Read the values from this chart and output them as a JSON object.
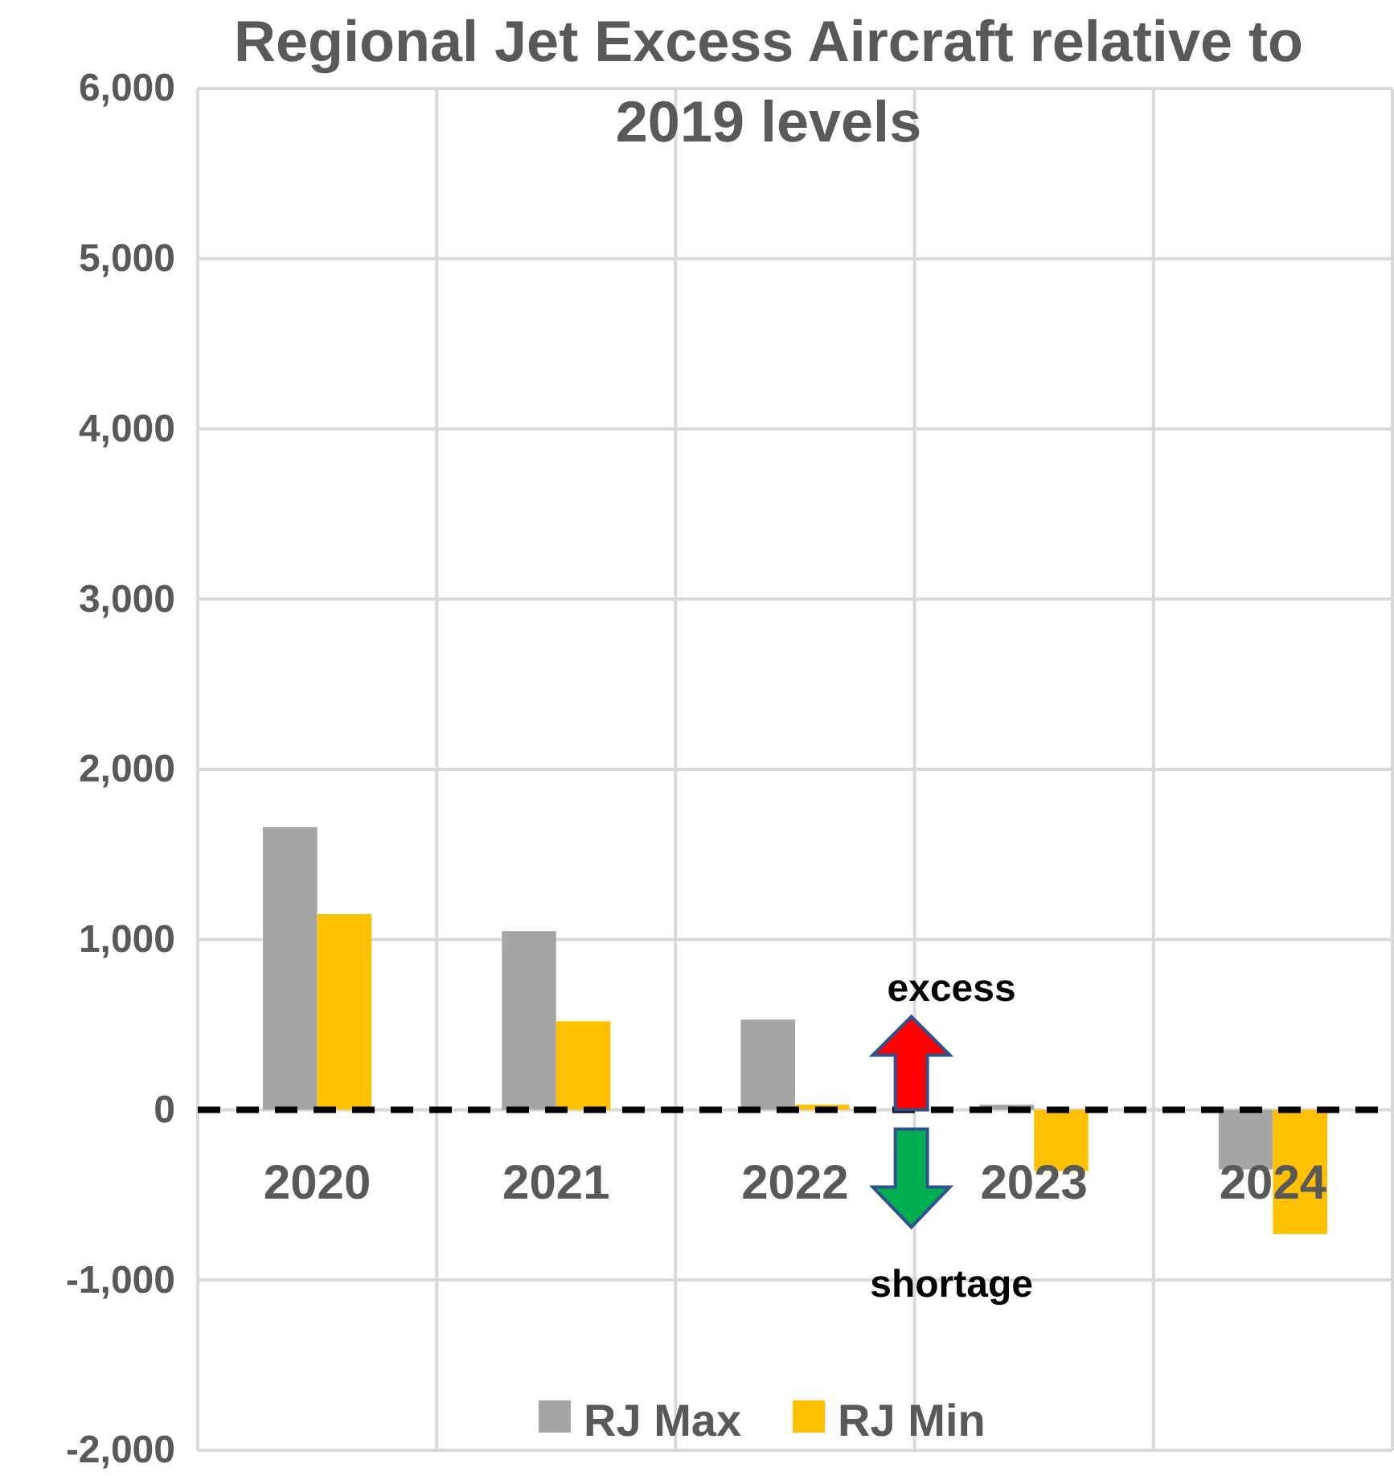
{
  "chart_data": {
    "type": "bar",
    "title": "Regional Jet Excess Aircraft relative to 2019 levels",
    "categories": [
      "2020",
      "2021",
      "2022",
      "2023",
      "2024"
    ],
    "series": [
      {
        "name": "RJ Max",
        "color": "#a5a5a5",
        "values": [
          1660,
          1050,
          530,
          30,
          -350
        ]
      },
      {
        "name": "RJ Min",
        "color": "#ffc000",
        "values": [
          1150,
          520,
          30,
          -360,
          -730
        ]
      }
    ],
    "ylim": [
      -2000,
      6000
    ],
    "yticks": [
      {
        "value": -2000,
        "label": "-2,000"
      },
      {
        "value": -1000,
        "label": "-1,000"
      },
      0,
      {
        "value": 1000,
        "label": "1,000"
      },
      {
        "value": 2000,
        "label": "2,000"
      },
      {
        "value": 3000,
        "label": "3,000"
      },
      {
        "value": 4000,
        "label": "4,000"
      },
      {
        "value": 5000,
        "label": "5,000"
      },
      {
        "value": 6000,
        "label": "6,000"
      }
    ],
    "grid": true,
    "legend": "bottom",
    "ref_lines": [
      {
        "axis": "y",
        "value": 0,
        "color": "#000000",
        "line_style": "dashed"
      }
    ],
    "annotations": [
      {
        "text": "excess",
        "y": 0
      },
      "shortage"
    ]
  }
}
